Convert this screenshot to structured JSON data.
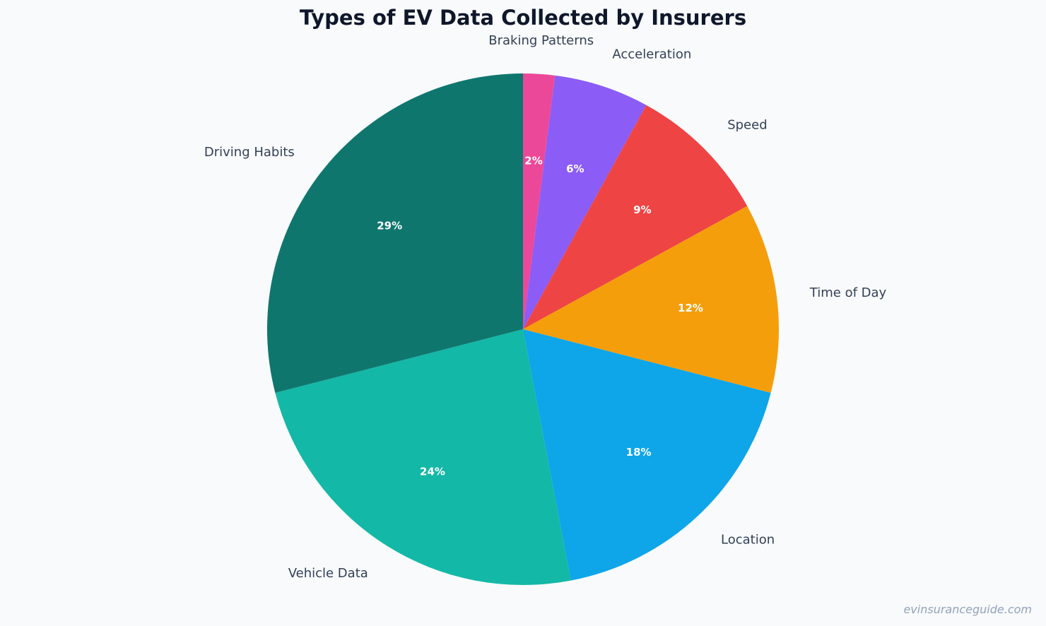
{
  "chart_data": {
    "type": "pie",
    "title": "Types of EV Data Collected by Insurers",
    "start_angle": "top, clockwise",
    "slices": [
      {
        "label": "Braking Patterns",
        "value": 2,
        "pct_label": "2%",
        "color": "#ec4899"
      },
      {
        "label": "Acceleration",
        "value": 6,
        "pct_label": "6%",
        "color": "#8b5cf6"
      },
      {
        "label": "Speed",
        "value": 9,
        "pct_label": "9%",
        "color": "#ef4444"
      },
      {
        "label": "Time of Day",
        "value": 12,
        "pct_label": "12%",
        "color": "#f59e0b"
      },
      {
        "label": "Location",
        "value": 18,
        "pct_label": "18%",
        "color": "#0ea5e9"
      },
      {
        "label": "Vehicle Data",
        "value": 24,
        "pct_label": "24%",
        "color": "#14b8a6"
      },
      {
        "label": "Driving Habits",
        "value": 29,
        "pct_label": "29%",
        "color": "#0f766e"
      }
    ]
  },
  "footer": {
    "watermark": "evinsuranceguide.com"
  }
}
